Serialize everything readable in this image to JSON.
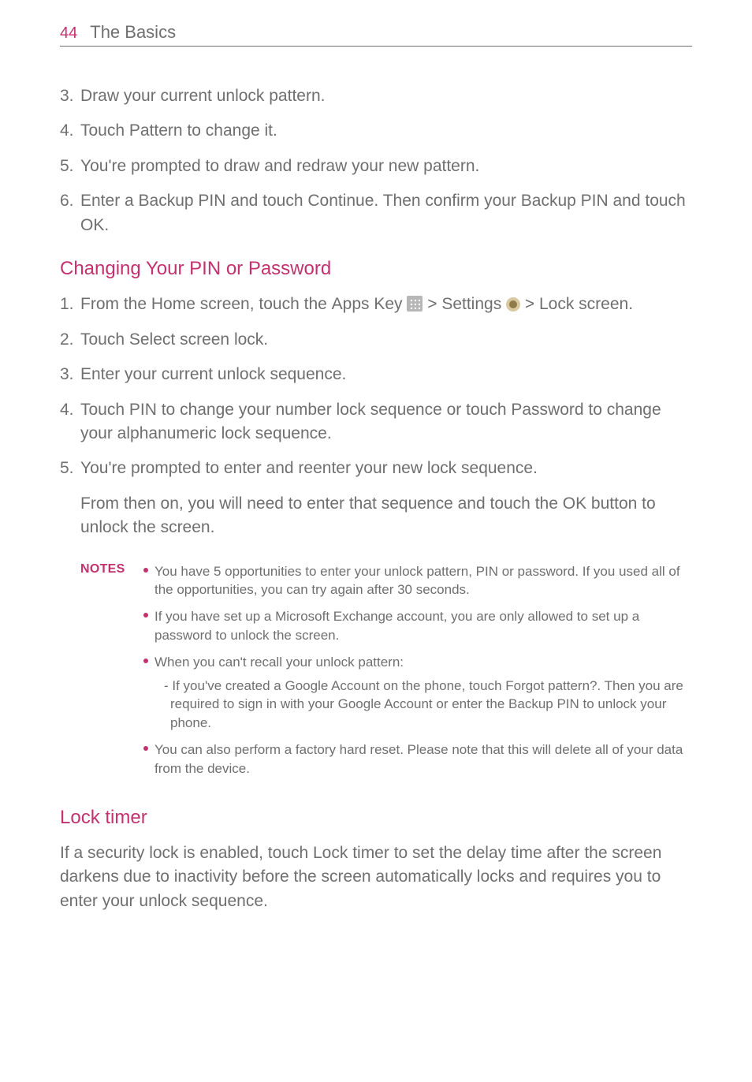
{
  "page_number": "44",
  "header_title": "The Basics",
  "colors": {
    "accent": "#c3316e",
    "body_text": "#6f6f6f",
    "rule": "#707070",
    "icon_apps_bg": "#b7b7b7",
    "icon_settings_bg": "#d9c9a0"
  },
  "fonts": {
    "body_size_pt": 16,
    "heading_size_pt": 18,
    "notes_size_pt": 13
  },
  "list_a": {
    "n3": "3.",
    "t3": "Draw your current unlock pattern.",
    "n4": "4.",
    "t4_pre": "Touch ",
    "t4_b": "Pattern",
    "t4_post": " to change it.",
    "n5": "5.",
    "t5": "You're prompted to draw and redraw your new pattern.",
    "n6": "6.",
    "t6_pre": "Enter a Backup PIN and touch ",
    "t6_b1": "Continue",
    "t6_mid": ". Then confirm your Backup PIN and touch ",
    "t6_b2": "OK",
    "t6_post": "."
  },
  "heading_pin": "Changing Your PIN or Password",
  "list_b": {
    "n1": "1.",
    "t1_pre": "From the Home screen, touch the ",
    "t1_b1": "Apps Key",
    "t1_sep1": " > ",
    "t1_b2": "Settings",
    "t1_sep2": " > ",
    "t1_b3": "Lock screen",
    "t1_post": ".",
    "n2": "2.",
    "t2_pre": "Touch ",
    "t2_b": "Select screen lock",
    "t2_post": ".",
    "n3": "3.",
    "t3": "Enter your current unlock sequence.",
    "n4": "4.",
    "t4_pre": "Touch ",
    "t4_b1": "PIN",
    "t4_mid": " to change your number lock sequence or touch ",
    "t4_b2": "Password",
    "t4_post": " to change your alphanumeric lock sequence.",
    "n5": "5.",
    "t5": "You're prompted to enter and reenter your new lock sequence.",
    "t5_extra_pre": "From then on, you will need to enter that sequence and touch the ",
    "t5_extra_b": "OK",
    "t5_extra_post": " button to unlock the screen."
  },
  "notes_label": "NOTES",
  "notes": {
    "i1": "You have 5 opportunities to enter your unlock pattern, PIN or password. If you used all of the opportunities, you can try again after 30 seconds.",
    "i2": "If you have set up a Microsoft Exchange account, you are only allowed to set up a password to unlock the screen.",
    "i3": "When you can't recall your unlock pattern:",
    "i3_sub_pre": "- If you've created a Google Account on the phone, touch ",
    "i3_sub_b": "Forgot pattern?",
    "i3_sub_post": ". Then you are required to sign in with your Google Account or enter the Backup PIN to unlock your phone.",
    "i4": "You can also perform a factory hard reset. Please note that this will delete all of your data from the device."
  },
  "heading_lock": "Lock timer",
  "lock_para_pre": "If a security lock is enabled, touch ",
  "lock_para_b": "Lock timer",
  "lock_para_post": " to set the delay time after the screen darkens due to inactivity before the screen automatically locks and requires you to enter your unlock sequence."
}
